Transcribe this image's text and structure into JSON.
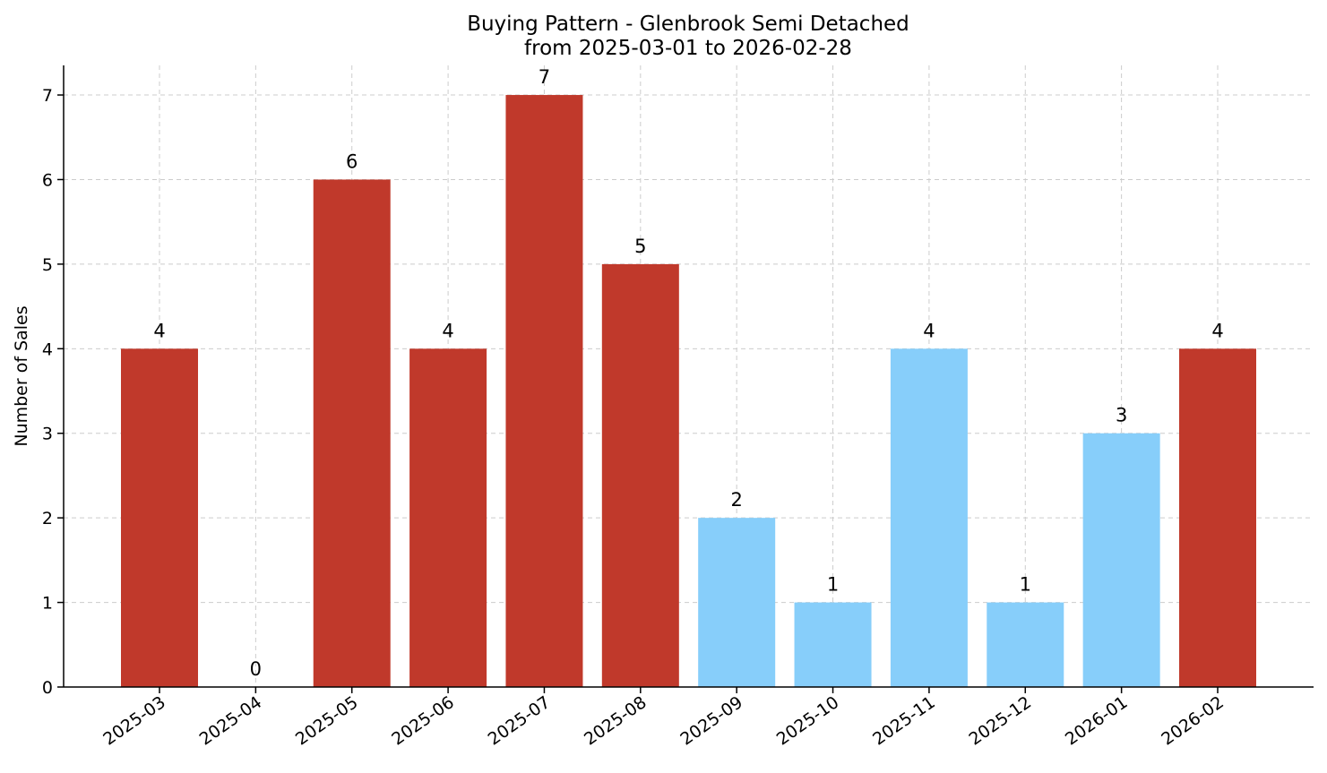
{
  "chart_data": {
    "type": "bar",
    "title": "Buying Pattern - Glenbrook Semi Detached",
    "subtitle": "from 2025-03-01 to 2026-02-28",
    "xlabel": "",
    "ylabel": "Number of Sales",
    "ylim": [
      0,
      7.35
    ],
    "yticks": [
      0,
      1,
      2,
      3,
      4,
      5,
      6,
      7
    ],
    "grid": true,
    "legend": "none",
    "categories": [
      "2025-03",
      "2025-04",
      "2025-05",
      "2025-06",
      "2025-07",
      "2025-08",
      "2025-09",
      "2025-10",
      "2025-11",
      "2025-12",
      "2026-01",
      "2026-02"
    ],
    "values": [
      4,
      0,
      6,
      4,
      7,
      5,
      2,
      1,
      4,
      1,
      3,
      4
    ],
    "bar_colors": [
      "#c0392b",
      "#c0392b",
      "#c0392b",
      "#c0392b",
      "#c0392b",
      "#c0392b",
      "#87cefa",
      "#87cefa",
      "#87cefa",
      "#87cefa",
      "#87cefa",
      "#c0392b"
    ]
  }
}
